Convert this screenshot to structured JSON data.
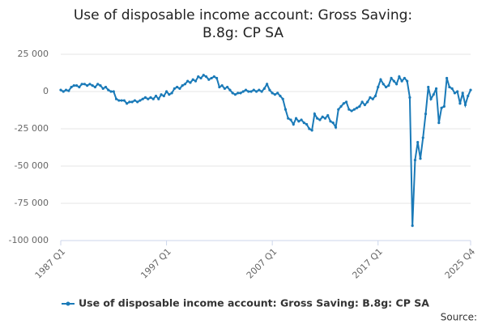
{
  "chart_data": {
    "type": "line",
    "title": "Use of disposable income account: Gross Saving: B.8g: CP SA",
    "source": "Source:",
    "categories": [
      "1987 Q1",
      null,
      null,
      null,
      null,
      null,
      null,
      null,
      null,
      null,
      null,
      null,
      null,
      null,
      null,
      null,
      null,
      null,
      null,
      null,
      null,
      null,
      null,
      null,
      null,
      null,
      null,
      null,
      null,
      null,
      null,
      null,
      null,
      null,
      null,
      null,
      null,
      null,
      null,
      null,
      "1997 Q1",
      null,
      null,
      null,
      null,
      null,
      null,
      null,
      null,
      null,
      null,
      null,
      null,
      null,
      null,
      null,
      null,
      null,
      null,
      null,
      null,
      null,
      null,
      null,
      null,
      null,
      null,
      null,
      null,
      null,
      null,
      null,
      null,
      null,
      null,
      null,
      null,
      null,
      null,
      null,
      "2007 Q1",
      null,
      null,
      null,
      null,
      null,
      null,
      null,
      null,
      null,
      null,
      null,
      null,
      null,
      null,
      null,
      null,
      null,
      null,
      null,
      null,
      null,
      null,
      null,
      null,
      null,
      null,
      null,
      null,
      null,
      null,
      null,
      null,
      null,
      null,
      null,
      null,
      null,
      null,
      null,
      "2017 Q1",
      null,
      null,
      null,
      null,
      null,
      null,
      null,
      null,
      null,
      null,
      null,
      null,
      null,
      null,
      null,
      null,
      null,
      null,
      null,
      null,
      null,
      null,
      null,
      null,
      null,
      null,
      null,
      null,
      null,
      null,
      null,
      null,
      null,
      null,
      "2025 Q4"
    ],
    "series": [
      {
        "name": "Use of disposable income account: Gross Saving: B.8g: CP SA",
        "color": "#1a7ab8",
        "values": [
          1000,
          0,
          1000,
          500,
          3000,
          4000,
          4000,
          3000,
          5000,
          5000,
          4000,
          5000,
          4000,
          3000,
          5000,
          4000,
          2000,
          3000,
          1000,
          0,
          0,
          -5000,
          -6000,
          -6000,
          -6000,
          -8000,
          -7000,
          -7000,
          -6000,
          -7000,
          -6000,
          -5000,
          -4000,
          -5000,
          -4000,
          -5000,
          -3000,
          -5000,
          -2000,
          -3000,
          0,
          -2000,
          -1000,
          2000,
          3000,
          2000,
          4000,
          5000,
          7000,
          6000,
          8000,
          7000,
          10000,
          9000,
          11000,
          10000,
          8000,
          9000,
          10000,
          9000,
          3000,
          4000,
          2000,
          3000,
          1000,
          -1000,
          -2000,
          -1000,
          -1000,
          0,
          1000,
          0,
          0,
          1000,
          0,
          1000,
          0,
          2000,
          5000,
          1000,
          -1000,
          -2000,
          -1000,
          -3000,
          -5000,
          -12000,
          -18000,
          -19000,
          -22000,
          -18000,
          -20000,
          -19000,
          -21000,
          -22000,
          -25000,
          -26000,
          -15000,
          -18000,
          -19000,
          -17000,
          -18000,
          -16000,
          -20000,
          -21000,
          -24000,
          -12000,
          -10000,
          -8000,
          -7000,
          -12000,
          -13000,
          -12000,
          -11000,
          -10000,
          -7000,
          -9000,
          -7000,
          -4000,
          -5000,
          -3000,
          3000,
          8000,
          5000,
          3000,
          4000,
          9000,
          7000,
          5000,
          10000,
          7000,
          9000,
          7000,
          -4000,
          -90000,
          -46000,
          -34000,
          -45000,
          -31000,
          -15000,
          3000,
          -5000,
          -2000,
          2000,
          -21000,
          -11000,
          -10000,
          9000,
          3000,
          2000,
          -1000,
          0,
          -8000,
          -1000,
          -9000,
          -3000,
          1000
        ]
      }
    ],
    "ylim": [
      -100000,
      25000
    ],
    "yticks": [
      {
        "value": 25000,
        "label": "25 000"
      },
      0,
      {
        "value": -25000,
        "label": "-25 000"
      },
      {
        "value": -50000,
        "label": "-50 000"
      },
      {
        "value": -75000,
        "label": "-75 000"
      },
      {
        "value": -100000,
        "label": "-100 000"
      }
    ],
    "grid": true
  }
}
